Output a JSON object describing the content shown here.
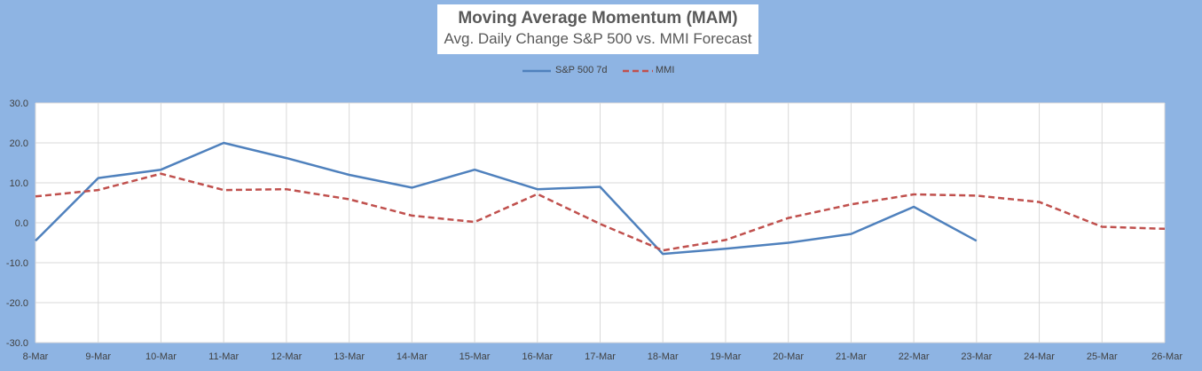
{
  "chart_data": {
    "type": "line",
    "title": "Moving Average Momentum (MAM)",
    "subtitle": "Avg. Daily Change S&P 500 vs. MMI Forecast",
    "categories": [
      "8-Mar",
      "9-Mar",
      "10-Mar",
      "11-Mar",
      "12-Mar",
      "13-Mar",
      "14-Mar",
      "15-Mar",
      "16-Mar",
      "17-Mar",
      "18-Mar",
      "19-Mar",
      "20-Mar",
      "21-Mar",
      "22-Mar",
      "23-Mar",
      "24-Mar",
      "25-Mar",
      "26-Mar"
    ],
    "ylim": [
      -30,
      30
    ],
    "yticks": [
      -30,
      -20,
      -10,
      0,
      10,
      20,
      30
    ],
    "ytick_labels": [
      "-30.0",
      "-20.0",
      "-10.0",
      "0.0",
      "10.0",
      "20.0",
      "30.0"
    ],
    "grid": true,
    "legend_position": "top-center",
    "series": [
      {
        "name": "S&P 500 7d",
        "color": "#4f81bd",
        "style": "solid",
        "values": [
          -4.5,
          11.2,
          13.3,
          20.0,
          16.2,
          12.0,
          8.8,
          13.3,
          8.4,
          9.0,
          -7.8,
          -6.5,
          -5.0,
          -2.8,
          4.0,
          -4.5,
          null,
          null,
          null
        ]
      },
      {
        "name": "MMI",
        "color": "#c0504d",
        "style": "dashed",
        "values": [
          6.6,
          8.2,
          12.3,
          8.2,
          8.4,
          5.9,
          1.8,
          0.2,
          7.2,
          -0.3,
          -6.9,
          -4.3,
          1.2,
          4.6,
          7.1,
          6.8,
          5.2,
          -1.0,
          -1.5
        ]
      }
    ]
  }
}
